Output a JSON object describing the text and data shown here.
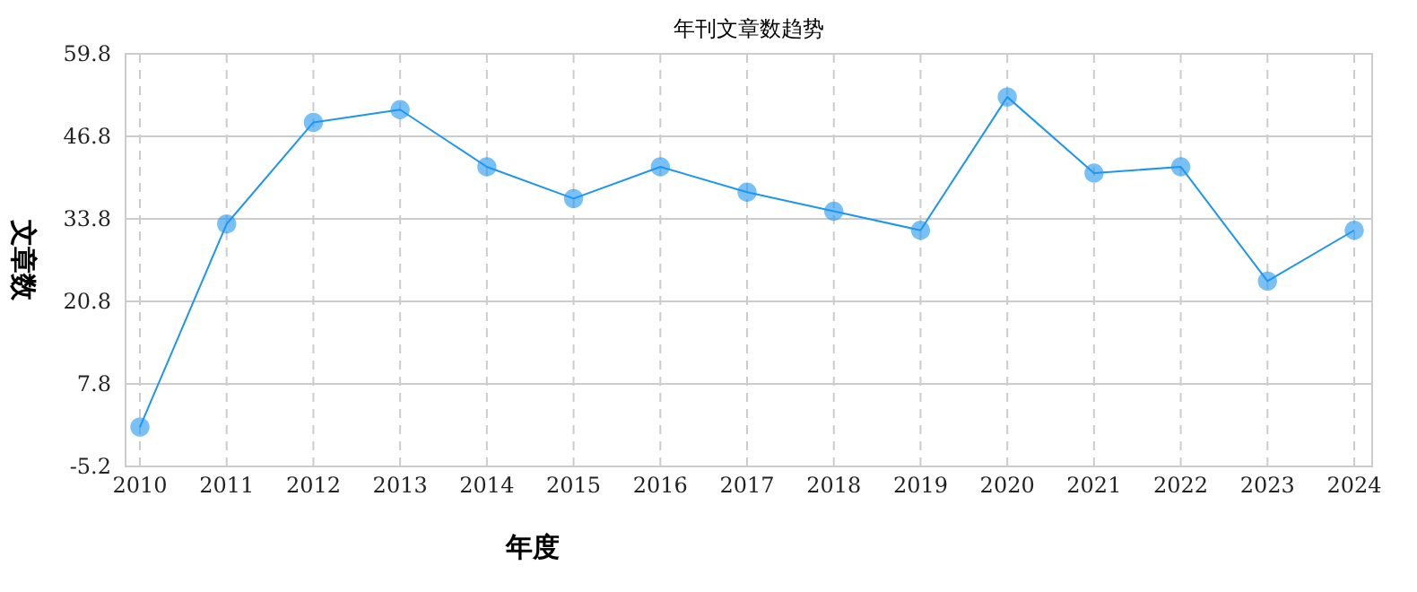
{
  "chart_data": {
    "type": "line",
    "title": "年刊文章数趋势",
    "xlabel": "年度",
    "ylabel": "文章数",
    "categories": [
      "2010",
      "2011",
      "2012",
      "2013",
      "2014",
      "2015",
      "2016",
      "2017",
      "2018",
      "2019",
      "2020",
      "2021",
      "2022",
      "2023",
      "2024"
    ],
    "series": [
      {
        "color": "#1e96f0",
        "values": [
          1,
          33,
          49,
          51,
          42,
          37,
          42,
          38,
          35,
          32,
          53,
          41,
          42,
          24,
          32
        ]
      }
    ],
    "ylim": [
      -5.2,
      59.8
    ],
    "yticks": [
      -5.2,
      7.8,
      20.8,
      33.8,
      46.8,
      59.8
    ],
    "grid": true,
    "marker": "circle",
    "line_style": "solid"
  }
}
